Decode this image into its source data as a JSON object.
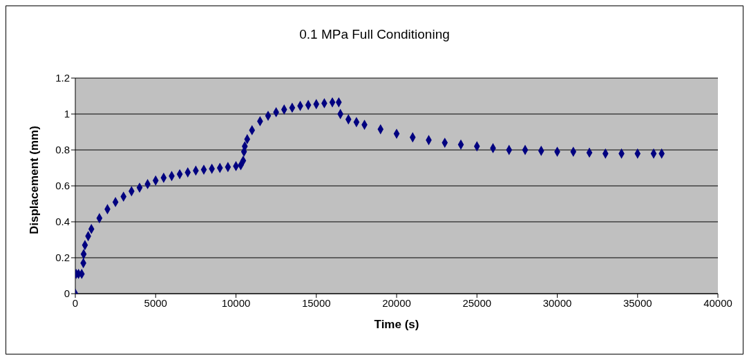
{
  "chart_data": {
    "type": "scatter",
    "title": "0.1 MPa Full Conditioning",
    "xlabel": "Time (s)",
    "ylabel": "Displacement (mm)",
    "xlim": [
      0,
      40000
    ],
    "xticks": [
      0,
      5000,
      10000,
      15000,
      20000,
      25000,
      30000,
      35000,
      40000
    ],
    "ylim": [
      0,
      1.2
    ],
    "yticks": [
      0,
      0.2,
      0.4,
      0.6,
      0.8,
      1,
      1.2
    ],
    "grid": "y",
    "marker": "diamond",
    "legend": false,
    "x": [
      0,
      50,
      200,
      400,
      500,
      520,
      600,
      800,
      1000,
      1500,
      2000,
      2500,
      3000,
      3500,
      4000,
      4500,
      5000,
      5500,
      6000,
      6500,
      7000,
      7500,
      8000,
      8500,
      9000,
      9500,
      10000,
      10300,
      10450,
      10500,
      10550,
      10700,
      11000,
      11500,
      12000,
      12500,
      13000,
      13500,
      14000,
      14500,
      15000,
      15500,
      16000,
      16400,
      16500,
      17000,
      17500,
      18000,
      19000,
      20000,
      21000,
      22000,
      23000,
      24000,
      25000,
      26000,
      27000,
      28000,
      29000,
      30000,
      31000,
      32000,
      33000,
      34000,
      35000,
      36000,
      36500
    ],
    "series": [
      {
        "color": "#000080",
        "values": [
          0,
          0.11,
          0.11,
          0.11,
          0.17,
          0.22,
          0.27,
          0.32,
          0.36,
          0.42,
          0.47,
          0.51,
          0.54,
          0.57,
          0.59,
          0.61,
          0.63,
          0.645,
          0.655,
          0.665,
          0.675,
          0.685,
          0.69,
          0.695,
          0.7,
          0.705,
          0.71,
          0.715,
          0.74,
          0.79,
          0.82,
          0.86,
          0.91,
          0.96,
          0.99,
          1.01,
          1.025,
          1.035,
          1.045,
          1.05,
          1.055,
          1.06,
          1.065,
          1.065,
          1,
          0.97,
          0.955,
          0.94,
          0.915,
          0.89,
          0.87,
          0.855,
          0.84,
          0.83,
          0.82,
          0.81,
          0.8,
          0.8,
          0.795,
          0.79,
          0.79,
          0.785,
          0.78,
          0.78,
          0.78,
          0.78,
          0.78
        ]
      }
    ]
  }
}
